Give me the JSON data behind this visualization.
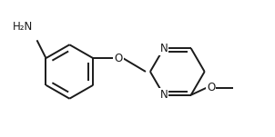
{
  "bg_color": "#ffffff",
  "line_color": "#1a1a1a",
  "text_color": "#1a1a1a",
  "line_width": 1.4,
  "font_size": 8.5,
  "figsize": [
    3.02,
    1.51
  ],
  "dpi": 100,
  "xlim": [
    0,
    302
  ],
  "ylim": [
    0,
    151
  ]
}
